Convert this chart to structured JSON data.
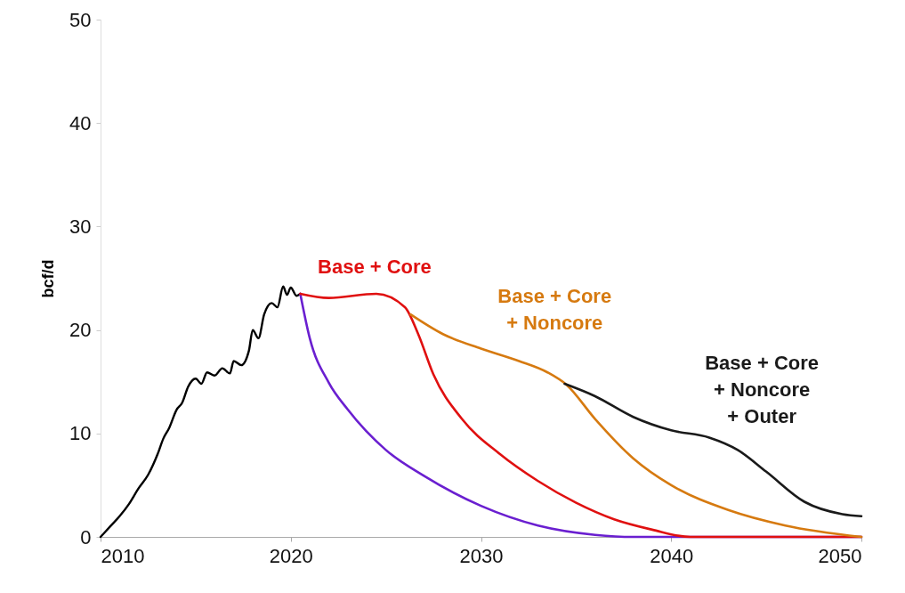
{
  "chart_data": {
    "type": "line",
    "ylabel": "bcf/d",
    "xlim": [
      2010,
      2050
    ],
    "ylim": [
      0,
      50
    ],
    "xticks": [
      2010,
      2020,
      2030,
      2040,
      2050
    ],
    "yticks": [
      0,
      10,
      20,
      30,
      40,
      50
    ],
    "grid": false,
    "line_style": "solid",
    "series": [
      {
        "color": "#000000",
        "x": [
          2010,
          2010.5,
          2011,
          2011.5,
          2012,
          2012.5,
          2013,
          2013.3,
          2013.6,
          2014,
          2014.3,
          2014.6,
          2015,
          2015.3,
          2015.6,
          2016,
          2016.4,
          2016.8,
          2017,
          2017.4,
          2017.8,
          2018,
          2018.3,
          2018.6,
          2019,
          2019.3,
          2019.6,
          2019.8,
          2020,
          2020.3,
          2020.5
        ],
        "values": [
          0,
          1,
          2,
          3.2,
          4.7,
          6,
          8,
          9.5,
          10.5,
          12.3,
          13,
          14.5,
          15.3,
          14.8,
          15.9,
          15.6,
          16.3,
          15.8,
          17,
          16.6,
          18,
          20,
          19.2,
          21.5,
          22.6,
          22.2,
          24.2,
          23.4,
          24.1,
          23.3,
          23.5
        ]
      },
      {
        "color": "#6a1fd0",
        "x": [
          2020.5,
          2021,
          2022,
          2023,
          2025,
          2027,
          2030,
          2033,
          2036,
          2038,
          2050
        ],
        "values": [
          23.5,
          19.2,
          14.9,
          12.3,
          8.4,
          5.9,
          3.0,
          1.1,
          0.2,
          0,
          0
        ]
      },
      {
        "name": "Base + Core",
        "color": "#e01010",
        "x": [
          2020.5,
          2022,
          2024.5,
          2026,
          2026.7,
          2027.5,
          2029,
          2031,
          2033,
          2035,
          2037,
          2039,
          2041,
          2050
        ],
        "values": [
          23.5,
          23.1,
          23.5,
          22.2,
          19.6,
          15.7,
          11.4,
          8.0,
          5.4,
          3.3,
          1.7,
          0.7,
          0,
          0
        ]
      },
      {
        "name": "Base + Core\n+ Noncore",
        "color": "#d67a10",
        "x": [
          2026.3,
          2028,
          2030,
          2032,
          2033.5,
          2034.5,
          2036,
          2038,
          2040,
          2043,
          2046,
          2050
        ],
        "values": [
          21.5,
          19.6,
          18.2,
          17.0,
          15.9,
          14.7,
          11.4,
          7.6,
          5.0,
          2.6,
          1.1,
          0
        ]
      },
      {
        "name": "Base + Core\n+ Noncore\n+ Outer",
        "color": "#1a1a1a",
        "x": [
          2034.4,
          2036,
          2038,
          2040,
          2042,
          2043.5,
          2045,
          2047,
          2049,
          2050
        ],
        "values": [
          14.8,
          13.6,
          11.6,
          10.3,
          9.6,
          8.4,
          6.3,
          3.4,
          2.2,
          2.0
        ]
      }
    ]
  }
}
